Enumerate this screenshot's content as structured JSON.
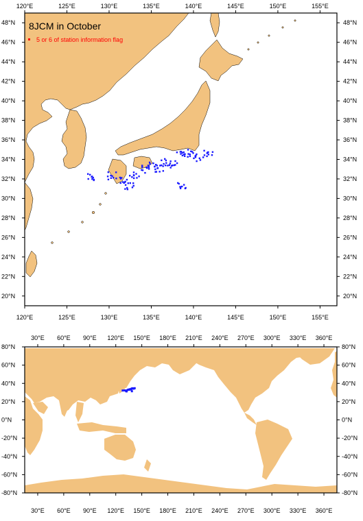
{
  "top_map": {
    "title": "8JCM in October",
    "legend_label": "5 or 6 of station information flag",
    "x_ticks": [
      "120°E",
      "125°E",
      "130°E",
      "135°E",
      "140°E",
      "145°E",
      "150°E",
      "155°E"
    ],
    "y_ticks": [
      "20°N",
      "22°N",
      "24°N",
      "26°N",
      "28°N",
      "30°N",
      "32°N",
      "34°N",
      "36°N",
      "38°N",
      "40°N",
      "42°N",
      "44°N",
      "46°N",
      "48°N"
    ]
  },
  "bottom_map": {
    "x_ticks": [
      "30°E",
      "60°E",
      "90°E",
      "120°E",
      "150°E",
      "180°E",
      "210°E",
      "240°E",
      "270°E",
      "300°E",
      "330°E",
      "360°E"
    ],
    "y_ticks": [
      "80°N",
      "60°N",
      "40°N",
      "20°N",
      "0°N",
      "-20°N",
      "-40°N",
      "-60°N",
      "-80°N"
    ]
  },
  "colors": {
    "land": "#f2c27f",
    "ocean": "#ffffff",
    "station": "#1a1aff",
    "legend_marker": "#ff0000",
    "legend_text": "#ff0000",
    "frame": "#000000"
  },
  "chart_data": {
    "type": "scatter",
    "region": {
      "lon": [
        120,
        157
      ],
      "lat": [
        19,
        49
      ]
    },
    "station_clusters": [
      {
        "lon": 128.0,
        "lat": 32.2
      },
      {
        "lon": 130.3,
        "lat": 32.3
      },
      {
        "lon": 131.8,
        "lat": 31.8
      },
      {
        "lon": 133.0,
        "lat": 32.4
      },
      {
        "lon": 134.2,
        "lat": 33.0
      },
      {
        "lon": 135.3,
        "lat": 33.3
      },
      {
        "lon": 136.0,
        "lat": 33.1
      },
      {
        "lon": 136.8,
        "lat": 33.7
      },
      {
        "lon": 137.8,
        "lat": 33.5
      },
      {
        "lon": 138.5,
        "lat": 34.4
      },
      {
        "lon": 139.4,
        "lat": 34.6
      },
      {
        "lon": 140.6,
        "lat": 34.2
      },
      {
        "lon": 141.8,
        "lat": 34.7
      },
      {
        "lon": 138.6,
        "lat": 31.4
      },
      {
        "lon": 132.4,
        "lat": 31.2
      }
    ]
  }
}
